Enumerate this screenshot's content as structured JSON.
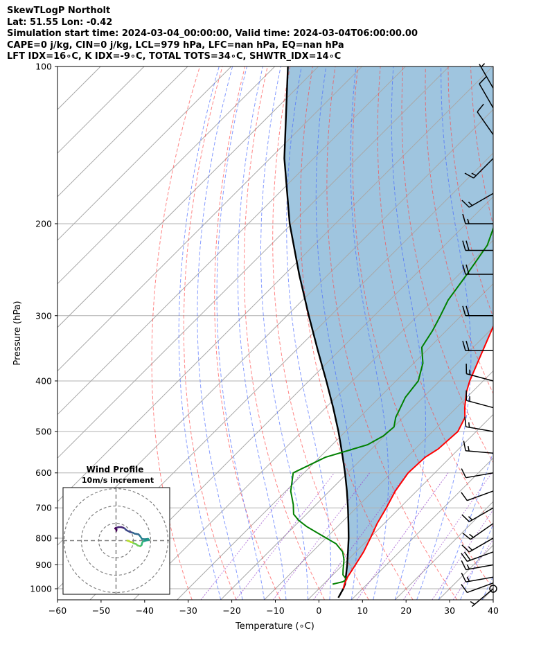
{
  "header": {
    "line1": "SkewTLogP Northolt",
    "line2": "Lat: 51.55   Lon: -0.42",
    "line3": "Simulation start time: 2024-03-04_00:00:00, Valid time: 2024-03-04T06:00:00.00",
    "line4": "CAPE=0 j/kg, CIN=0 j/kg, LCL=979 hPa, LFC=nan hPa, EQ=nan hPa",
    "line5": "LFT IDX=16∘C, K IDX=-9∘C, TOTAL TOTS=34∘C, SHWTR_IDX=14∘C"
  },
  "chart_data": {
    "type": "line",
    "xlabel": "Temperature (∘C)",
    "ylabel": "Pressure (hPa)",
    "x_ticks": [
      "−60",
      "−50",
      "−40",
      "−30",
      "−20",
      "−10",
      "0",
      "10",
      "20",
      "30",
      "40"
    ],
    "y_ticks": [
      "100",
      "200",
      "300",
      "400",
      "500",
      "600",
      "700",
      "800",
      "900",
      "1000"
    ],
    "xlim": [
      -60,
      40
    ],
    "ylim": [
      1050,
      100
    ],
    "y_scale": "log",
    "skew": "45 degrees (skew-T log-p)",
    "grid": true,
    "colors": {
      "temperature": "#ff0000",
      "dewpoint": "#008000",
      "parcel": "#000000",
      "shading": "#9fc5df",
      "dry_adiabats": "#ff4444",
      "moist_adiabats": "#4466ff",
      "mixing_ratio": "#9944cc",
      "isotherms": "#aaaaaa"
    },
    "temperature_profile": [
      [
        1000,
        5.6
      ],
      [
        980,
        4.8
      ],
      [
        950,
        3.9
      ],
      [
        900,
        2.9
      ],
      [
        850,
        1.8
      ],
      [
        800,
        0.2
      ],
      [
        750,
        -1.6
      ],
      [
        700,
        -3.1
      ],
      [
        650,
        -4.9
      ],
      [
        600,
        -6.1
      ],
      [
        560,
        -5.8
      ],
      [
        540,
        -4.7
      ],
      [
        500,
        -4.2
      ],
      [
        470,
        -5.8
      ],
      [
        450,
        -8.1
      ],
      [
        420,
        -11.3
      ],
      [
        400,
        -13.1
      ],
      [
        370,
        -15.4
      ],
      [
        340,
        -17.9
      ],
      [
        300,
        -21.6
      ],
      [
        270,
        -25.2
      ],
      [
        255,
        -26.8
      ],
      [
        245,
        -27.1
      ],
      [
        230,
        -27.8
      ],
      [
        200,
        -32.5
      ],
      [
        185,
        -34.6
      ],
      [
        170,
        -36.7
      ],
      [
        150,
        -39.6
      ],
      [
        140,
        -40.5
      ],
      [
        130,
        -40.8
      ],
      [
        115,
        -43.5
      ],
      [
        100,
        -45.5
      ]
    ],
    "dewpoint_profile": [
      [
        980,
        2.1
      ],
      [
        970,
        3.9
      ],
      [
        960,
        4.2
      ],
      [
        940,
        2.3
      ],
      [
        920,
        1.2
      ],
      [
        880,
        -0.9
      ],
      [
        850,
        -3.0
      ],
      [
        820,
        -6.4
      ],
      [
        790,
        -11.7
      ],
      [
        760,
        -17.1
      ],
      [
        740,
        -20.3
      ],
      [
        720,
        -22.9
      ],
      [
        690,
        -25.2
      ],
      [
        650,
        -28.9
      ],
      [
        600,
        -32.5
      ],
      [
        560,
        -28.7
      ],
      [
        530,
        -21.9
      ],
      [
        510,
        -20.3
      ],
      [
        490,
        -19.9
      ],
      [
        470,
        -21.7
      ],
      [
        430,
        -24.1
      ],
      [
        400,
        -24.9
      ],
      [
        370,
        -27.9
      ],
      [
        345,
        -31.8
      ],
      [
        320,
        -33.2
      ],
      [
        300,
        -34.8
      ],
      [
        280,
        -36.6
      ],
      [
        250,
        -38.2
      ],
      [
        220,
        -40.2
      ],
      [
        200,
        -43.4
      ],
      [
        185,
        -45.8
      ],
      [
        170,
        -48.0
      ],
      [
        160,
        -51.0
      ],
      [
        150,
        -54.0
      ],
      [
        140,
        -57.3
      ],
      [
        130,
        -60.6
      ],
      [
        120,
        -64.3
      ],
      [
        110,
        -68.0
      ],
      [
        100,
        -70.0
      ]
    ],
    "parcel_profile": [
      [
        1040,
        6.5
      ],
      [
        1000,
        5.6
      ],
      [
        979,
        4.9
      ],
      [
        950,
        3.5
      ],
      [
        900,
        1.0
      ],
      [
        850,
        -1.8
      ],
      [
        800,
        -4.8
      ],
      [
        750,
        -8.2
      ],
      [
        700,
        -11.9
      ],
      [
        650,
        -16.0
      ],
      [
        600,
        -20.6
      ],
      [
        550,
        -25.8
      ],
      [
        500,
        -31.6
      ],
      [
        450,
        -38.3
      ],
      [
        400,
        -46.0
      ],
      [
        350,
        -54.9
      ],
      [
        300,
        -65.0
      ],
      [
        250,
        -76.7
      ],
      [
        200,
        -90.5
      ],
      [
        150,
        -106.7
      ],
      [
        100,
        -127.0
      ]
    ],
    "wind_barbs": [
      {
        "p": 1000,
        "speed_kt": 5,
        "dir_deg": 230
      },
      {
        "p": 975,
        "speed_kt": 10,
        "dir_deg": 250
      },
      {
        "p": 950,
        "speed_kt": 15,
        "dir_deg": 260
      },
      {
        "p": 900,
        "speed_kt": 15,
        "dir_deg": 260
      },
      {
        "p": 850,
        "speed_kt": 20,
        "dir_deg": 250
      },
      {
        "p": 800,
        "speed_kt": 15,
        "dir_deg": 240
      },
      {
        "p": 750,
        "speed_kt": 15,
        "dir_deg": 235
      },
      {
        "p": 700,
        "speed_kt": 15,
        "dir_deg": 240
      },
      {
        "p": 650,
        "speed_kt": 10,
        "dir_deg": 250
      },
      {
        "p": 600,
        "speed_kt": 10,
        "dir_deg": 260
      },
      {
        "p": 550,
        "speed_kt": 15,
        "dir_deg": 275
      },
      {
        "p": 500,
        "speed_kt": 15,
        "dir_deg": 280
      },
      {
        "p": 450,
        "speed_kt": 15,
        "dir_deg": 285
      },
      {
        "p": 400,
        "speed_kt": 15,
        "dir_deg": 285
      },
      {
        "p": 350,
        "speed_kt": 20,
        "dir_deg": 270
      },
      {
        "p": 300,
        "speed_kt": 20,
        "dir_deg": 270
      },
      {
        "p": 250,
        "speed_kt": 20,
        "dir_deg": 270
      },
      {
        "p": 225,
        "speed_kt": 20,
        "dir_deg": 270
      },
      {
        "p": 200,
        "speed_kt": 15,
        "dir_deg": 270
      },
      {
        "p": 175,
        "speed_kt": 15,
        "dir_deg": 240
      },
      {
        "p": 150,
        "speed_kt": 15,
        "dir_deg": 225
      },
      {
        "p": 135,
        "speed_kt": 10,
        "dir_deg": 325
      },
      {
        "p": 120,
        "speed_kt": 10,
        "dir_deg": 330
      },
      {
        "p": 110,
        "speed_kt": 5,
        "dir_deg": 330
      }
    ],
    "hodograph": {
      "title": "Wind Profile",
      "subtitle": "10m/s increment",
      "ring_spacing_ms": 10,
      "points_uv": [
        [
          0.2,
          5.6
        ],
        [
          0.3,
          6.4
        ],
        [
          -0.5,
          7.0
        ],
        [
          -0.3,
          7.2
        ],
        [
          0.5,
          7.5
        ],
        [
          1.5,
          7.8
        ],
        [
          3.0,
          7.8
        ],
        [
          4.0,
          7.5
        ],
        [
          5.0,
          7.0
        ],
        [
          6.0,
          6.0
        ],
        [
          8.0,
          5.0
        ],
        [
          9.8,
          4.5
        ],
        [
          10.8,
          4.0
        ],
        [
          12.0,
          3.8
        ],
        [
          13.0,
          3.6
        ],
        [
          14.0,
          2.5
        ],
        [
          15.0,
          0.9
        ],
        [
          17.0,
          0.8
        ],
        [
          18.5,
          1.0
        ],
        [
          19.0,
          0.5
        ],
        [
          18.0,
          0.2
        ],
        [
          16.5,
          -0.2
        ],
        [
          15.5,
          -0.5
        ],
        [
          15.0,
          -1.5
        ],
        [
          14.8,
          -2.5
        ],
        [
          14.0,
          -3.3
        ],
        [
          12.5,
          -2.8
        ],
        [
          11.5,
          -2.0
        ],
        [
          10.0,
          -1.5
        ],
        [
          9.5,
          -1.0
        ],
        [
          8.5,
          -0.8
        ],
        [
          7.5,
          -0.3
        ],
        [
          6.5,
          0.0
        ]
      ]
    }
  }
}
